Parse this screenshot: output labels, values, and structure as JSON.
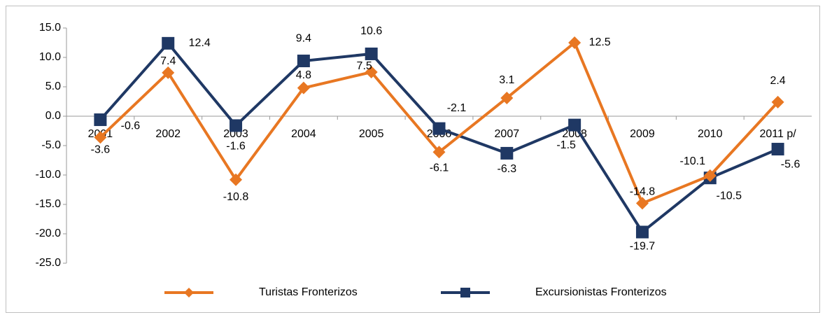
{
  "chart_data": {
    "type": "line",
    "categories": [
      "2001",
      "2002",
      "2003",
      "2004",
      "2005",
      "2006",
      "2007",
      "2008",
      "2009",
      "2010",
      "2011 p/"
    ],
    "series": [
      {
        "name": "Turistas Fronterizos",
        "color": "#e87722",
        "marker": "diamond",
        "values": [
          -3.6,
          7.4,
          -10.8,
          4.8,
          7.5,
          -6.1,
          3.1,
          12.5,
          -14.8,
          -10.1,
          2.4
        ]
      },
      {
        "name": "Excursionistas Fronterizos",
        "color": "#1f3864",
        "marker": "square",
        "values": [
          -0.6,
          12.4,
          -1.6,
          9.4,
          10.6,
          -2.1,
          -6.3,
          -1.5,
          -19.7,
          -10.5,
          -5.6
        ]
      }
    ],
    "ylim": [
      -25,
      15
    ],
    "yticks": [
      {
        "value": -25,
        "label": "-25.0"
      },
      {
        "value": -20,
        "label": "-20.0"
      },
      {
        "value": -15,
        "label": "-15.0"
      },
      {
        "value": -10,
        "label": "-10.0"
      },
      {
        "value": -5,
        "label": "-5.0"
      },
      {
        "value": 0,
        "label": "0.0"
      },
      {
        "value": 5,
        "label": "5.0"
      },
      {
        "value": 10,
        "label": "10.0"
      },
      {
        "value": 15,
        "label": "15.0"
      }
    ],
    "legend": "bottom"
  }
}
